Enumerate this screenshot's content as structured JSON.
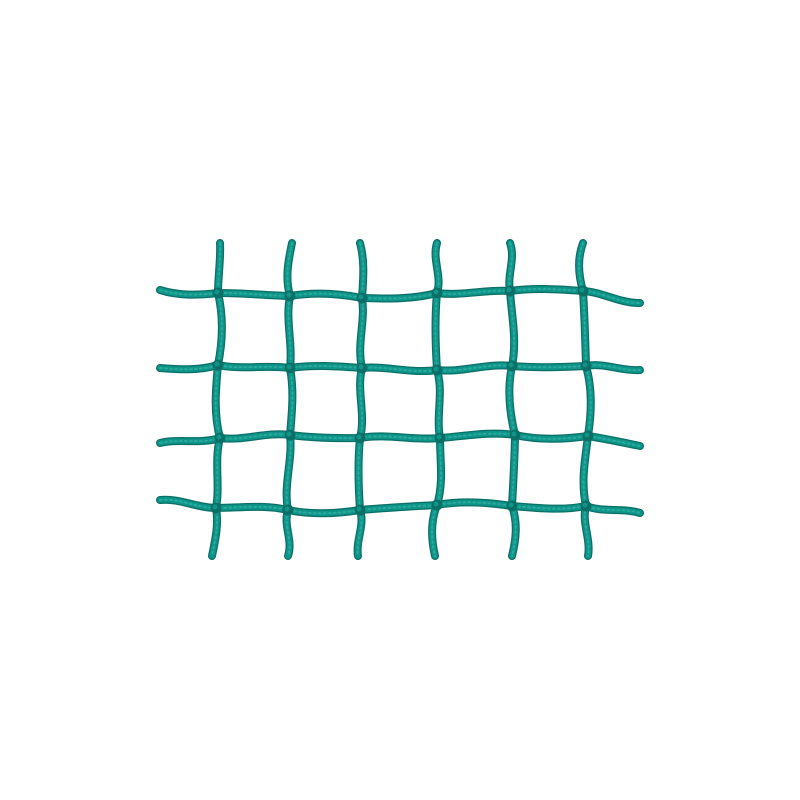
{
  "image": {
    "subject": "net-mesh",
    "colors": {
      "background": "#ffffff",
      "cord": "#0e9488",
      "cord_dark": "#0a6f66",
      "cord_highlight": "#3cbcaf"
    },
    "mesh": {
      "columns": 6,
      "rows": 4
    }
  }
}
